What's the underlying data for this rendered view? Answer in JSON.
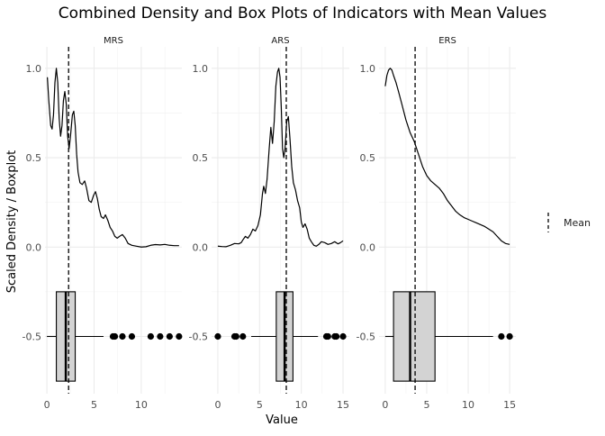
{
  "chart_data": {
    "type": "density+boxplot (faceted)",
    "title": "Combined Density and Box Plots of Indicators with Mean Values",
    "xlabel": "Value",
    "ylabel": "Scaled Density / Boxplot",
    "ylim": [
      -0.82,
      1.12
    ],
    "y_ticks": [
      1.0,
      0.5,
      0.0,
      -0.5
    ],
    "y_tick_labels": [
      "1.0",
      "0.5",
      "0.0",
      "-0.5"
    ],
    "grid": true,
    "legend": {
      "position": "right",
      "entries": [
        {
          "label": "Mean",
          "style": "dashed-line"
        }
      ]
    },
    "box": {
      "center": -0.5,
      "half_height": 0.25
    },
    "facets": [
      {
        "name": "MRS",
        "xlim": [
          -0.2,
          14.3
        ],
        "x_ticks": [
          0,
          5,
          10
        ],
        "x_tick_labels": [
          "0",
          "5",
          "10"
        ],
        "mean": 2.3,
        "box": {
          "whisker_low": 0,
          "q1": 1,
          "median": 2,
          "q3": 3,
          "whisker_high": 6
        },
        "outliers": [
          7,
          7.2,
          8,
          9,
          11,
          12,
          13,
          14
        ],
        "density": [
          [
            0.05,
            0.95
          ],
          [
            0.2,
            0.82
          ],
          [
            0.4,
            0.68
          ],
          [
            0.55,
            0.66
          ],
          [
            0.7,
            0.74
          ],
          [
            0.85,
            0.92
          ],
          [
            1.0,
            1.0
          ],
          [
            1.15,
            0.92
          ],
          [
            1.3,
            0.72
          ],
          [
            1.45,
            0.62
          ],
          [
            1.6,
            0.68
          ],
          [
            1.75,
            0.82
          ],
          [
            1.9,
            0.87
          ],
          [
            2.05,
            0.8
          ],
          [
            2.2,
            0.62
          ],
          [
            2.35,
            0.55
          ],
          [
            2.5,
            0.62
          ],
          [
            2.7,
            0.74
          ],
          [
            2.85,
            0.76
          ],
          [
            3.0,
            0.68
          ],
          [
            3.15,
            0.52
          ],
          [
            3.3,
            0.42
          ],
          [
            3.5,
            0.36
          ],
          [
            3.75,
            0.35
          ],
          [
            4.0,
            0.37
          ],
          [
            4.2,
            0.33
          ],
          [
            4.45,
            0.26
          ],
          [
            4.7,
            0.25
          ],
          [
            4.95,
            0.29
          ],
          [
            5.15,
            0.31
          ],
          [
            5.35,
            0.27
          ],
          [
            5.55,
            0.21
          ],
          [
            5.75,
            0.17
          ],
          [
            6.0,
            0.16
          ],
          [
            6.2,
            0.18
          ],
          [
            6.45,
            0.15
          ],
          [
            6.7,
            0.11
          ],
          [
            6.95,
            0.09
          ],
          [
            7.2,
            0.06
          ],
          [
            7.45,
            0.05
          ],
          [
            7.7,
            0.06
          ],
          [
            8.0,
            0.07
          ],
          [
            8.3,
            0.05
          ],
          [
            8.6,
            0.02
          ],
          [
            9.0,
            0.01
          ],
          [
            9.5,
            0.005
          ],
          [
            10.0,
            0.0
          ],
          [
            10.5,
            0.002
          ],
          [
            11.0,
            0.01
          ],
          [
            11.5,
            0.014
          ],
          [
            12.0,
            0.012
          ],
          [
            12.5,
            0.015
          ],
          [
            13.0,
            0.01
          ],
          [
            13.5,
            0.008
          ],
          [
            14.0,
            0.008
          ]
        ]
      },
      {
        "name": "ARS",
        "xlim": [
          -0.75,
          15.75
        ],
        "x_ticks": [
          0,
          5,
          10,
          15
        ],
        "x_tick_labels": [
          "0",
          "5",
          "10",
          "15"
        ],
        "mean": 8.2,
        "box": {
          "whisker_low": 4,
          "q1": 7,
          "median": 8,
          "q3": 9,
          "whisker_high": 12
        },
        "outliers": [
          0,
          2,
          2.2,
          3,
          13,
          13.2,
          14,
          14.2,
          15
        ],
        "density": [
          [
            0.0,
            0.005
          ],
          [
            0.5,
            0.003
          ],
          [
            1.0,
            0.002
          ],
          [
            1.5,
            0.01
          ],
          [
            2.0,
            0.02
          ],
          [
            2.5,
            0.018
          ],
          [
            2.8,
            0.025
          ],
          [
            3.0,
            0.04
          ],
          [
            3.3,
            0.06
          ],
          [
            3.6,
            0.05
          ],
          [
            3.9,
            0.07
          ],
          [
            4.2,
            0.1
          ],
          [
            4.5,
            0.09
          ],
          [
            4.8,
            0.12
          ],
          [
            5.1,
            0.18
          ],
          [
            5.35,
            0.3
          ],
          [
            5.5,
            0.34
          ],
          [
            5.7,
            0.3
          ],
          [
            5.9,
            0.38
          ],
          [
            6.15,
            0.55
          ],
          [
            6.35,
            0.67
          ],
          [
            6.55,
            0.58
          ],
          [
            6.75,
            0.7
          ],
          [
            6.95,
            0.9
          ],
          [
            7.15,
            0.98
          ],
          [
            7.3,
            1.0
          ],
          [
            7.45,
            0.95
          ],
          [
            7.6,
            0.78
          ],
          [
            7.75,
            0.55
          ],
          [
            7.9,
            0.5
          ],
          [
            8.05,
            0.55
          ],
          [
            8.25,
            0.7
          ],
          [
            8.45,
            0.73
          ],
          [
            8.65,
            0.6
          ],
          [
            8.85,
            0.45
          ],
          [
            9.05,
            0.36
          ],
          [
            9.3,
            0.32
          ],
          [
            9.55,
            0.26
          ],
          [
            9.8,
            0.22
          ],
          [
            10.0,
            0.14
          ],
          [
            10.2,
            0.11
          ],
          [
            10.45,
            0.13
          ],
          [
            10.7,
            0.1
          ],
          [
            10.95,
            0.05
          ],
          [
            11.2,
            0.03
          ],
          [
            11.5,
            0.01
          ],
          [
            11.8,
            0.005
          ],
          [
            12.1,
            0.015
          ],
          [
            12.4,
            0.03
          ],
          [
            12.8,
            0.025
          ],
          [
            13.2,
            0.015
          ],
          [
            13.6,
            0.02
          ],
          [
            14.0,
            0.03
          ],
          [
            14.4,
            0.018
          ],
          [
            14.7,
            0.025
          ],
          [
            15.0,
            0.035
          ]
        ]
      },
      {
        "name": "ERS",
        "xlim": [
          -0.75,
          15.75
        ],
        "x_ticks": [
          0,
          5,
          10,
          15
        ],
        "x_tick_labels": [
          "0",
          "5",
          "10",
          "15"
        ],
        "mean": 3.6,
        "box": {
          "whisker_low": 0,
          "q1": 1,
          "median": 3,
          "q3": 6,
          "whisker_high": 13
        },
        "outliers": [
          14,
          15
        ],
        "density": [
          [
            0.0,
            0.9
          ],
          [
            0.2,
            0.96
          ],
          [
            0.4,
            0.99
          ],
          [
            0.6,
            1.0
          ],
          [
            0.8,
            0.99
          ],
          [
            1.0,
            0.96
          ],
          [
            1.3,
            0.92
          ],
          [
            1.6,
            0.87
          ],
          [
            2.0,
            0.8
          ],
          [
            2.5,
            0.71
          ],
          [
            3.0,
            0.64
          ],
          [
            3.5,
            0.59
          ],
          [
            4.0,
            0.52
          ],
          [
            4.5,
            0.45
          ],
          [
            5.0,
            0.4
          ],
          [
            5.5,
            0.37
          ],
          [
            6.0,
            0.35
          ],
          [
            6.5,
            0.33
          ],
          [
            7.0,
            0.3
          ],
          [
            7.5,
            0.26
          ],
          [
            8.0,
            0.23
          ],
          [
            8.5,
            0.2
          ],
          [
            9.0,
            0.18
          ],
          [
            9.5,
            0.165
          ],
          [
            10.0,
            0.155
          ],
          [
            10.5,
            0.145
          ],
          [
            11.0,
            0.135
          ],
          [
            11.5,
            0.125
          ],
          [
            12.0,
            0.115
          ],
          [
            12.5,
            0.1
          ],
          [
            13.0,
            0.085
          ],
          [
            13.5,
            0.06
          ],
          [
            14.0,
            0.035
          ],
          [
            14.5,
            0.02
          ],
          [
            15.0,
            0.015
          ]
        ]
      }
    ]
  }
}
